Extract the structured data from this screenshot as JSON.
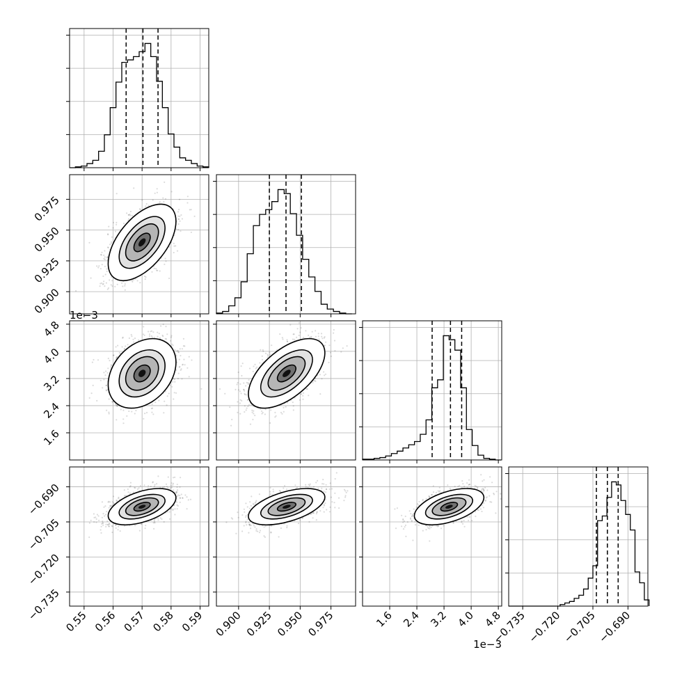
{
  "chart_data": {
    "type": "corner",
    "grid": true,
    "params": [
      {
        "range": [
          0.545,
          0.593
        ],
        "ticks": [
          0.55,
          0.56,
          0.57,
          0.58,
          0.59
        ],
        "tick_labels": [
          "0.55",
          "0.56",
          "0.57",
          "0.58",
          "0.59"
        ],
        "quantiles": [
          0.5645,
          0.5703,
          0.5755
        ],
        "hist_bins": [
          0.545,
          0.547,
          0.549,
          0.551,
          0.553,
          0.555,
          0.557,
          0.559,
          0.561,
          0.563,
          0.565,
          0.567,
          0.569,
          0.571,
          0.573,
          0.575,
          0.577,
          0.579,
          0.581,
          0.583,
          0.585,
          0.587,
          0.589,
          0.591,
          0.593
        ],
        "hist": [
          0,
          1,
          2,
          5,
          9,
          20,
          40,
          73,
          104,
          128,
          131,
          135,
          141,
          151,
          135,
          105,
          73,
          41,
          25,
          12,
          9,
          5,
          2,
          1
        ]
      },
      {
        "range": [
          0.882,
          0.995
        ],
        "ticks": [
          0.9,
          0.925,
          0.95,
          0.975
        ],
        "tick_labels": [
          "0.900",
          "0.925",
          "0.950",
          "0.975"
        ],
        "quantiles": [
          0.925,
          0.9385,
          0.951
        ],
        "hist_bins": [
          0.882,
          0.887,
          0.892,
          0.897,
          0.902,
          0.907,
          0.912,
          0.917,
          0.922,
          0.927,
          0.932,
          0.937,
          0.942,
          0.947,
          0.952,
          0.957,
          0.962,
          0.967,
          0.972,
          0.977,
          0.982,
          0.987,
          0.992
        ],
        "hist": [
          1,
          3,
          10,
          20,
          40,
          75,
          110,
          124,
          130,
          140,
          155,
          150,
          125,
          98,
          68,
          46,
          28,
          12,
          6,
          3,
          1,
          0
        ]
      },
      {
        "range": [
          0.0008,
          0.0049
        ],
        "ticks": [
          0.0016,
          0.0024,
          0.0032,
          0.004,
          0.0048
        ],
        "tick_labels": [
          "1.6",
          "2.4",
          "3.2",
          "4.0",
          "4.8"
        ],
        "offset": "1e−3",
        "quantiles": [
          0.00285,
          0.00339,
          0.00372
        ],
        "hist_bins": [
          0.0008,
          0.00097,
          0.00114,
          0.00131,
          0.00148,
          0.00165,
          0.00182,
          0.00199,
          0.00216,
          0.00233,
          0.0025,
          0.00267,
          0.00284,
          0.00301,
          0.00318,
          0.00335,
          0.00352,
          0.00369,
          0.00386,
          0.00403,
          0.0042,
          0.00437,
          0.00454,
          0.00471,
          0.00488
        ],
        "hist": [
          1,
          1,
          2,
          3,
          5,
          8,
          11,
          15,
          19,
          23,
          32,
          50,
          90,
          100,
          155,
          150,
          137,
          90,
          38,
          18,
          6,
          2,
          1,
          0
        ]
      },
      {
        "range": [
          -0.741,
          -0.6815
        ],
        "ticks": [
          -0.735,
          -0.72,
          -0.705,
          -0.69
        ],
        "tick_labels": [
          "−0.735",
          "−0.720",
          "−0.705",
          "−0.690"
        ],
        "quantiles": [
          -0.7035,
          -0.6988,
          -0.6942
        ],
        "hist_bins": [
          -0.741,
          -0.739,
          -0.737,
          -0.735,
          -0.733,
          -0.731,
          -0.729,
          -0.727,
          -0.725,
          -0.723,
          -0.721,
          -0.719,
          -0.717,
          -0.715,
          -0.713,
          -0.711,
          -0.709,
          -0.707,
          -0.705,
          -0.703,
          -0.701,
          -0.699,
          -0.697,
          -0.695,
          -0.693,
          -0.691,
          -0.689,
          -0.687,
          -0.685,
          -0.683,
          -0.681
        ],
        "hist": [
          0,
          0,
          0,
          0,
          0,
          0,
          0,
          0,
          0,
          0,
          0,
          1,
          2,
          3,
          5,
          7,
          11,
          18,
          26,
          55,
          58,
          70,
          80,
          78,
          68,
          59,
          49,
          22,
          15,
          4
        ]
      }
    ],
    "pairs": [
      {
        "row": 1,
        "col": 0,
        "mean": [
          0.57,
          0.94
        ],
        "cov": [
          [
            3.19e-05,
            4.68e-05
          ],
          [
            4.68e-05,
            0.000225
          ]
        ]
      },
      {
        "row": 2,
        "col": 0,
        "mean": [
          0.57,
          0.00335
        ],
        "cov": [
          [
            3.19e-05,
            8.85e-07
          ],
          [
            8.85e-07,
            2.45e-07
          ]
        ]
      },
      {
        "row": 2,
        "col": 1,
        "mean": [
          0.939,
          0.00335
        ],
        "cov": [
          [
            0.000225,
            4.36e-06
          ],
          [
            4.36e-06,
            2.45e-07
          ]
        ]
      },
      {
        "row": 3,
        "col": 0,
        "mean": [
          0.57,
          -0.6985
        ],
        "cov": [
          [
            3.19e-05,
            1.05e-05
          ],
          [
            1.05e-05,
            1.41e-05
          ]
        ]
      },
      {
        "row": 3,
        "col": 1,
        "mean": [
          0.939,
          -0.6985
        ],
        "cov": [
          [
            0.000225,
            2.97e-05
          ],
          [
            2.97e-05,
            1.41e-05
          ]
        ]
      },
      {
        "row": 3,
        "col": 2,
        "mean": [
          0.00335,
          -0.6985
        ],
        "cov": [
          [
            2.45e-07,
            9.32e-07
          ],
          [
            9.32e-07,
            1.41e-05
          ]
        ]
      }
    ],
    "contour_levels": [
      0.118,
      0.393,
      0.675,
      0.865
    ]
  }
}
